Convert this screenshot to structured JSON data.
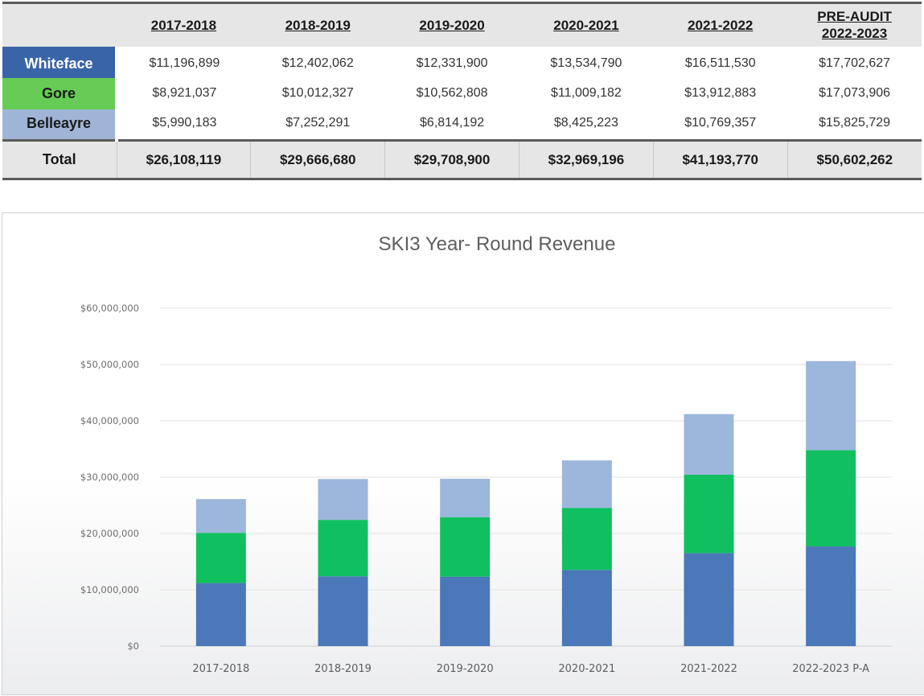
{
  "table": {
    "columns": [
      "2017-2018",
      "2018-2019",
      "2019-2020",
      "2020-2021",
      "2021-2022",
      "PRE-AUDIT 2022-2023"
    ],
    "rows": [
      {
        "label": "Whiteface",
        "label_bg": "#3a64a8",
        "label_color": "#ffffff",
        "values": [
          "$11,196,899",
          "$12,402,062",
          "$12,331,900",
          "$13,534,790",
          "$16,511,530",
          "$17,702,627"
        ]
      },
      {
        "label": "Gore",
        "label_bg": "#66cc55",
        "label_color": "#1a1a1a",
        "values": [
          "$8,921,037",
          "$10,012,327",
          "$10,562,808",
          "$11,009,182",
          "$13,912,883",
          "$17,073,906"
        ]
      },
      {
        "label": "Belleayre",
        "label_bg": "#9fb4d6",
        "label_color": "#1a1a1a",
        "values": [
          "$5,990,183",
          "$7,252,291",
          "$6,814,192",
          "$8,425,223",
          "$10,769,357",
          "$15,825,729"
        ]
      }
    ],
    "total": {
      "label": "Total",
      "values": [
        "$26,108,119",
        "$29,666,680",
        "$29,708,900",
        "$32,969,196",
        "$41,193,770",
        "$50,602,262"
      ]
    }
  },
  "chart_data": {
    "type": "bar",
    "stacked": true,
    "title": "SKI3 Year- Round Revenue",
    "xlabel": "",
    "ylabel": "",
    "categories": [
      "2017-2018",
      "2018-2019",
      "2019-2020",
      "2020-2021",
      "2021-2022",
      "2022-2023 P-A"
    ],
    "series": [
      {
        "values": [
          11196899,
          12402062,
          12331900,
          13534790,
          16511530,
          17702627
        ],
        "color": "#4a78b8"
      },
      {
        "values": [
          8921037,
          10012327,
          10562808,
          11009182,
          13912883,
          17073906
        ],
        "color": "#10c060"
      },
      {
        "values": [
          5990183,
          7252291,
          6814192,
          8425223,
          10769357,
          15825729
        ],
        "color": "#9cb6dc"
      }
    ],
    "ylim": [
      0,
      60000000
    ],
    "yticks": [
      0,
      10000000,
      20000000,
      30000000,
      40000000,
      50000000,
      60000000
    ],
    "ytick_labels": [
      "$0",
      "$10,000,000",
      "$20,000,000",
      "$30,000,000",
      "$40,000,000",
      "$50,000,000",
      "$60,000,000"
    ],
    "grid": true,
    "legend": "none"
  }
}
